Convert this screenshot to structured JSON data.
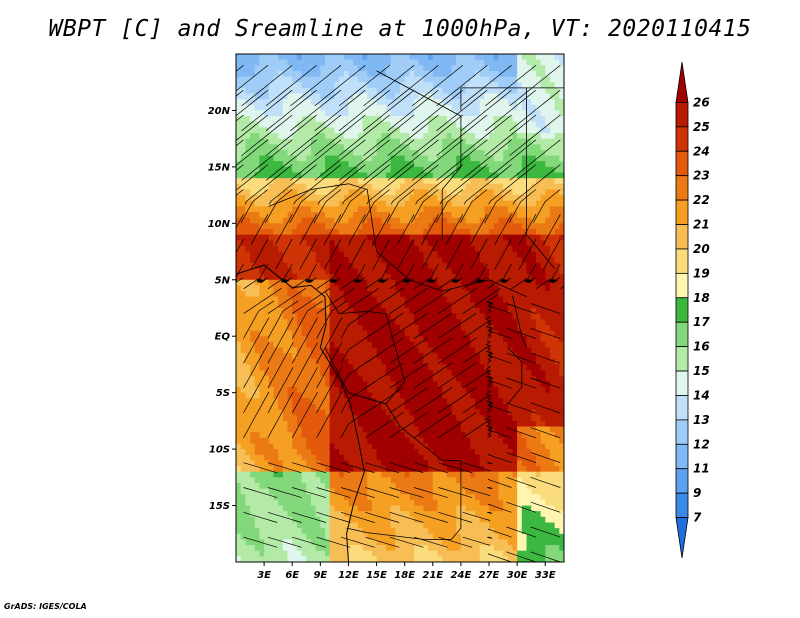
{
  "title": "WBPT [C] and Sreamline at 1000hPa, VT: 2020110415",
  "credit": "GrADS: IGES/COLA",
  "map": {
    "lon_range": [
      0,
      35
    ],
    "lat_range": [
      -20,
      25
    ],
    "lat_ticks": [
      "20N",
      "15N",
      "10N",
      "5N",
      "EQ",
      "5S",
      "10S",
      "15S"
    ],
    "lon_ticks": [
      "3E",
      "6E",
      "9E",
      "12E",
      "15E",
      "18E",
      "21E",
      "24E",
      "27E",
      "30E",
      "33E"
    ]
  },
  "colorbar": {
    "labels": [
      "7",
      "9",
      "11",
      "12",
      "13",
      "14",
      "15",
      "16",
      "17",
      "18",
      "19",
      "20",
      "21",
      "22",
      "23",
      "24",
      "25",
      "26"
    ],
    "colors": [
      "#1e6ee0",
      "#3c8ae8",
      "#5ea2ef",
      "#7fb8f3",
      "#a0cdf7",
      "#c0e0fa",
      "#e0f6ec",
      "#b4eaa8",
      "#82d87a",
      "#3cb840",
      "#fff4b0",
      "#fbdc7c",
      "#f8be56",
      "#f5a023",
      "#ec7a14",
      "#e35a0c",
      "#cf3406",
      "#b81a02",
      "#a00000"
    ]
  }
}
